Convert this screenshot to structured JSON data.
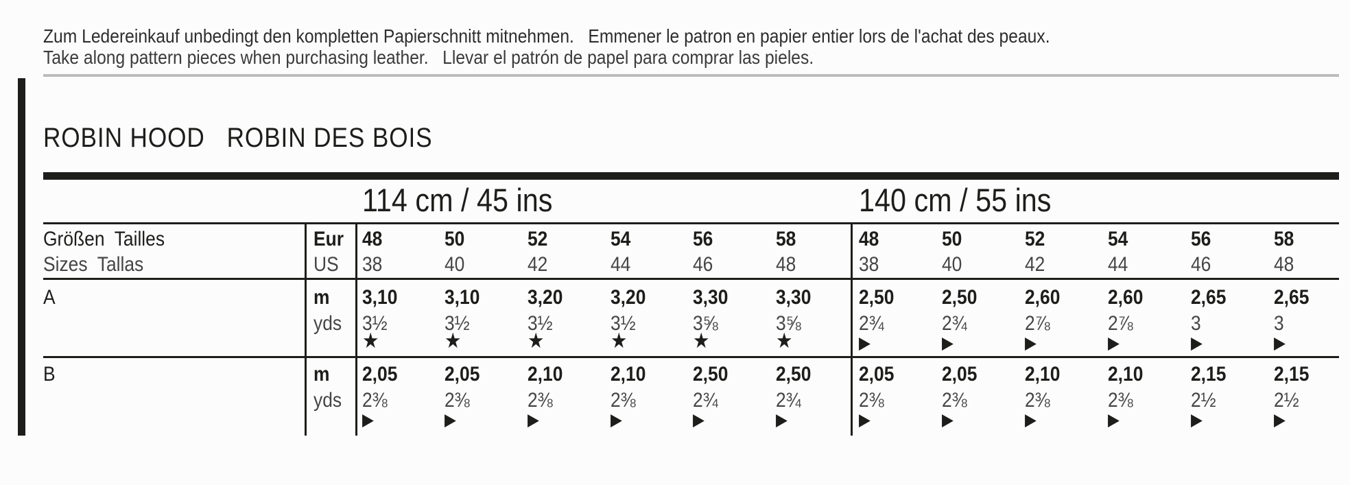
{
  "notice": {
    "line1": "Zum Ledereinkauf unbedingt den kompletten Papierschnitt mitnehmen.   Emmener le patron en papier entier lors de l'achat des peaux.",
    "line2": "Take along pattern pieces when purchasing leather.   Llevar el patrón de papel para comprar las pieles."
  },
  "title": "ROBIN HOOD   ROBIN DES BOIS",
  "table": {
    "size_label_line1": "Größen  Tailles",
    "size_label_line2": "Sizes  Tallas",
    "unit_labels": {
      "eur": "Eur",
      "us": "US",
      "meters": "m",
      "yards": "yds"
    },
    "symbols": {
      "star": "★",
      "triangle": "▶"
    },
    "row_labels": [
      "A",
      "B"
    ],
    "sections": [
      {
        "width_header": "114 cm / 45 ins",
        "sizes_eur": [
          "48",
          "50",
          "52",
          "54",
          "56",
          "58"
        ],
        "sizes_us": [
          "38",
          "40",
          "42",
          "44",
          "46",
          "48"
        ],
        "rows": [
          {
            "label": "A",
            "m": [
              "3,10",
              "3,10",
              "3,20",
              "3,20",
              "3,30",
              "3,30"
            ],
            "yds": [
              "3½",
              "3½",
              "3½",
              "3½",
              "3⅝",
              "3⅝"
            ],
            "symbol": "star"
          },
          {
            "label": "B",
            "m": [
              "2,05",
              "2,05",
              "2,10",
              "2,10",
              "2,50",
              "2,50"
            ],
            "yds": [
              "2⅜",
              "2⅜",
              "2⅜",
              "2⅜",
              "2¾",
              "2¾"
            ],
            "symbol": "triangle"
          }
        ]
      },
      {
        "width_header": "140 cm / 55 ins",
        "sizes_eur": [
          "48",
          "50",
          "52",
          "54",
          "56",
          "58"
        ],
        "sizes_us": [
          "38",
          "40",
          "42",
          "44",
          "46",
          "48"
        ],
        "rows": [
          {
            "label": "A",
            "m": [
              "2,50",
              "2,50",
              "2,60",
              "2,60",
              "2,65",
              "2,65"
            ],
            "yds": [
              "2¾",
              "2¾",
              "2⅞",
              "2⅞",
              "3",
              "3"
            ],
            "symbol": "triangle"
          },
          {
            "label": "B",
            "m": [
              "2,05",
              "2,05",
              "2,10",
              "2,10",
              "2,15",
              "2,15"
            ],
            "yds": [
              "2⅜",
              "2⅜",
              "2⅜",
              "2⅜",
              "2½",
              "2½"
            ],
            "symbol": "triangle"
          }
        ]
      }
    ]
  },
  "colors": {
    "ink": "#1d1d1b",
    "ink_light": "#454545",
    "rule_gray": "#bcbcbc",
    "background": "#fcfcfc"
  }
}
